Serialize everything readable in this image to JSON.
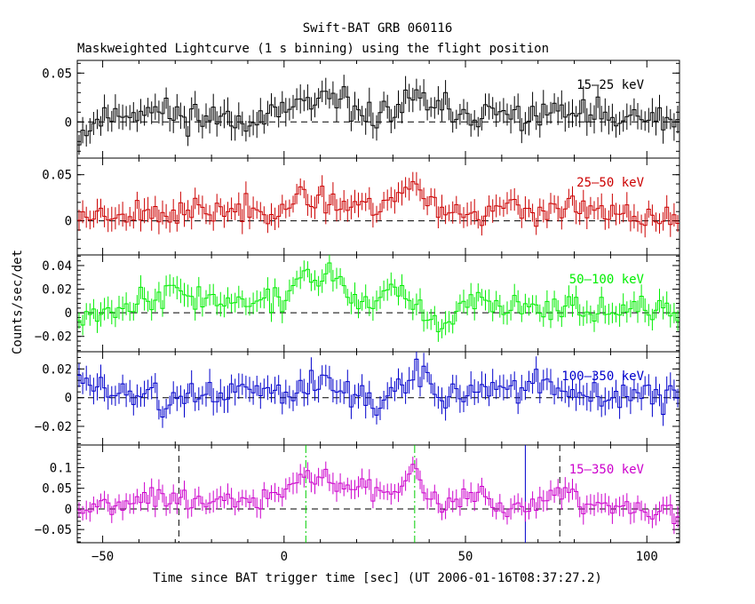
{
  "chart_data": {
    "type": "line",
    "title": "Swift-BAT GRB 060116",
    "subtitle": "Maskweighted Lightcurve (1 s binning) using the flight position",
    "xlabel": "Time since BAT trigger time [sec] (UT 2006-01-16T08:37:27.2)",
    "ylabel": "Counts/sec/det",
    "xlim": [
      -57,
      109
    ],
    "x_ticks": [
      -50,
      0,
      50,
      100
    ],
    "x_tick_labels": [
      "−50",
      "0",
      "50",
      "100"
    ],
    "bin_seconds": 1,
    "panels": [
      {
        "band": "15–25 keV",
        "color": "#000000",
        "ylim": [
          -0.037,
          0.063
        ],
        "y_ticks": [
          0,
          0.05
        ],
        "y_tick_labels": [
          "0",
          "0.05"
        ],
        "segments": [
          [
            -57,
            -0.015
          ],
          [
            -50,
            0.005
          ],
          [
            -40,
            0.012
          ],
          [
            -30,
            0.008
          ],
          [
            -20,
            0.005
          ],
          [
            -10,
            0.005
          ],
          [
            0,
            0.005
          ],
          [
            5,
            0.025
          ],
          [
            8,
            0.015
          ],
          [
            14,
            0.02
          ],
          [
            20,
            0.01
          ],
          [
            30,
            0.008
          ],
          [
            36,
            0.025
          ],
          [
            42,
            0.012
          ],
          [
            50,
            0.008
          ],
          [
            60,
            0.005
          ],
          [
            70,
            0.008
          ],
          [
            77,
            0.01
          ],
          [
            85,
            0.005
          ],
          [
            95,
            0.002
          ],
          [
            109,
            0.0
          ]
        ],
        "noise": 0.013,
        "seed": 11
      },
      {
        "band": "25–50 keV",
        "color": "#cc0000",
        "ylim": [
          -0.037,
          0.068
        ],
        "y_ticks": [
          0,
          0.05
        ],
        "y_tick_labels": [
          "0",
          "0.05"
        ],
        "segments": [
          [
            -57,
            0.005
          ],
          [
            -50,
            0.008
          ],
          [
            -40,
            0.01
          ],
          [
            -30,
            0.008
          ],
          [
            -20,
            0.01
          ],
          [
            -10,
            0.012
          ],
          [
            0,
            0.015
          ],
          [
            5,
            0.02
          ],
          [
            10,
            0.025
          ],
          [
            15,
            0.02
          ],
          [
            25,
            0.015
          ],
          [
            32,
            0.03
          ],
          [
            36,
            0.04
          ],
          [
            42,
            0.015
          ],
          [
            50,
            0.008
          ],
          [
            60,
            0.012
          ],
          [
            70,
            0.01
          ],
          [
            77,
            0.015
          ],
          [
            85,
            0.008
          ],
          [
            95,
            0.005
          ],
          [
            109,
            0.0
          ]
        ],
        "noise": 0.012,
        "seed": 23
      },
      {
        "band": "50–100 keV",
        "color": "#00ee00",
        "ylim": [
          -0.033,
          0.049
        ],
        "y_ticks": [
          -0.02,
          0,
          0.02,
          0.04
        ],
        "y_tick_labels": [
          "−0.02",
          "0",
          "0.02",
          "0.04"
        ],
        "segments": [
          [
            -57,
            -0.002
          ],
          [
            -50,
            0.003
          ],
          [
            -40,
            0.01
          ],
          [
            -30,
            0.018
          ],
          [
            -20,
            0.012
          ],
          [
            -10,
            0.008
          ],
          [
            0,
            0.01
          ],
          [
            5,
            0.035
          ],
          [
            8,
            0.028
          ],
          [
            14,
            0.032
          ],
          [
            18,
            0.01
          ],
          [
            25,
            0.008
          ],
          [
            28,
            0.025
          ],
          [
            33,
            0.012
          ],
          [
            40,
            -0.008
          ],
          [
            45,
            -0.012
          ],
          [
            50,
            0.005
          ],
          [
            55,
            0.012
          ],
          [
            65,
            0.005
          ],
          [
            75,
            0.008
          ],
          [
            80,
            0.005
          ],
          [
            90,
            0.002
          ],
          [
            109,
            0.0
          ]
        ],
        "noise": 0.009,
        "seed": 37
      },
      {
        "band": "100–350 keV",
        "color": "#0000cc",
        "ylim": [
          -0.033,
          0.032
        ],
        "y_ticks": [
          -0.02,
          0,
          0.02
        ],
        "y_tick_labels": [
          "−0.02",
          "0",
          "0.02"
        ],
        "segments": [
          [
            -57,
            0.012
          ],
          [
            -50,
            0.005
          ],
          [
            -40,
            0.004
          ],
          [
            -30,
            -0.005
          ],
          [
            -20,
            0.003
          ],
          [
            -10,
            0.005
          ],
          [
            0,
            0.005
          ],
          [
            5,
            0.01
          ],
          [
            12,
            0.01
          ],
          [
            20,
            0.003
          ],
          [
            26,
            -0.008
          ],
          [
            30,
            0.003
          ],
          [
            36,
            0.02
          ],
          [
            42,
            0.004
          ],
          [
            50,
            0.002
          ],
          [
            58,
            0.008
          ],
          [
            66,
            0.002
          ],
          [
            72,
            0.012
          ],
          [
            78,
            0.004
          ],
          [
            90,
            0.001
          ],
          [
            109,
            0.0
          ]
        ],
        "noise": 0.0085,
        "seed": 51
      },
      {
        "band": "15–350 keV",
        "color": "#cc00cc",
        "ylim": [
          -0.082,
          0.155
        ],
        "y_ticks": [
          -0.05,
          0,
          0.05,
          0.1
        ],
        "y_tick_labels": [
          "−0.05",
          "0",
          "0.05",
          "0.1"
        ],
        "segments": [
          [
            -57,
            0.002
          ],
          [
            -50,
            0.01
          ],
          [
            -42,
            0.03
          ],
          [
            -35,
            0.02
          ],
          [
            -25,
            0.02
          ],
          [
            -15,
            0.02
          ],
          [
            -5,
            0.025
          ],
          [
            0,
            0.035
          ],
          [
            5,
            0.085
          ],
          [
            10,
            0.07
          ],
          [
            15,
            0.065
          ],
          [
            22,
            0.05
          ],
          [
            28,
            0.04
          ],
          [
            33,
            0.07
          ],
          [
            36,
            0.11
          ],
          [
            40,
            0.035
          ],
          [
            48,
            0.015
          ],
          [
            55,
            0.04
          ],
          [
            62,
            0.0
          ],
          [
            70,
            0.012
          ],
          [
            77,
            0.06
          ],
          [
            82,
            0.01
          ],
          [
            92,
            0.005
          ],
          [
            109,
            -0.005
          ]
        ],
        "noise": 0.023,
        "seed": 67,
        "markers": [
          {
            "x": -29,
            "style": "dashed",
            "color": "#000000"
          },
          {
            "x": 6,
            "style": "dashdot",
            "color": "#00cc00"
          },
          {
            "x": 36,
            "style": "dashdot",
            "color": "#00cc00"
          },
          {
            "x": 66.5,
            "style": "solid",
            "color": "#0000cc"
          },
          {
            "x": 76,
            "style": "dashed",
            "color": "#000000"
          }
        ]
      }
    ]
  }
}
